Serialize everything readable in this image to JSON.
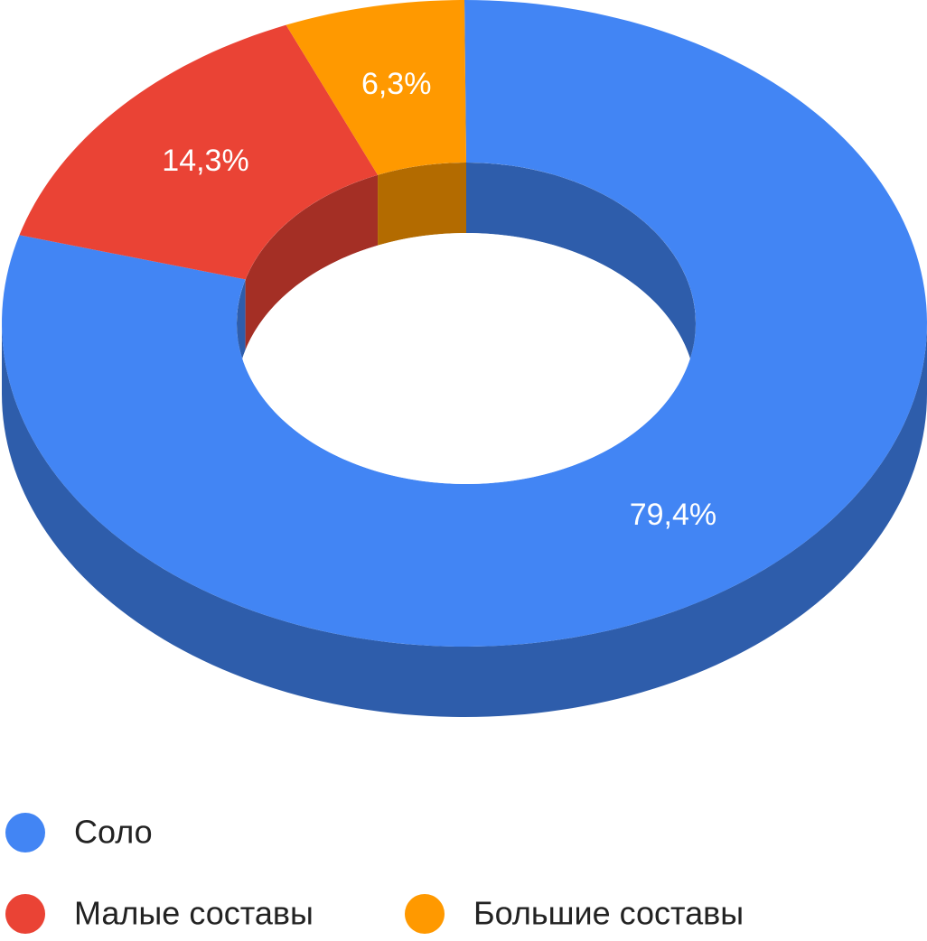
{
  "chart_data": {
    "type": "pie",
    "categories": [
      "Соло",
      "Малые составы",
      "Большие составы"
    ],
    "values": [
      79.4,
      14.3,
      6.3
    ],
    "value_labels": [
      "79,4%",
      "14,3%",
      "6,3%"
    ],
    "colors": [
      "#4285f4",
      "#ea4335",
      "#ff9900"
    ],
    "legend": "bottom"
  }
}
